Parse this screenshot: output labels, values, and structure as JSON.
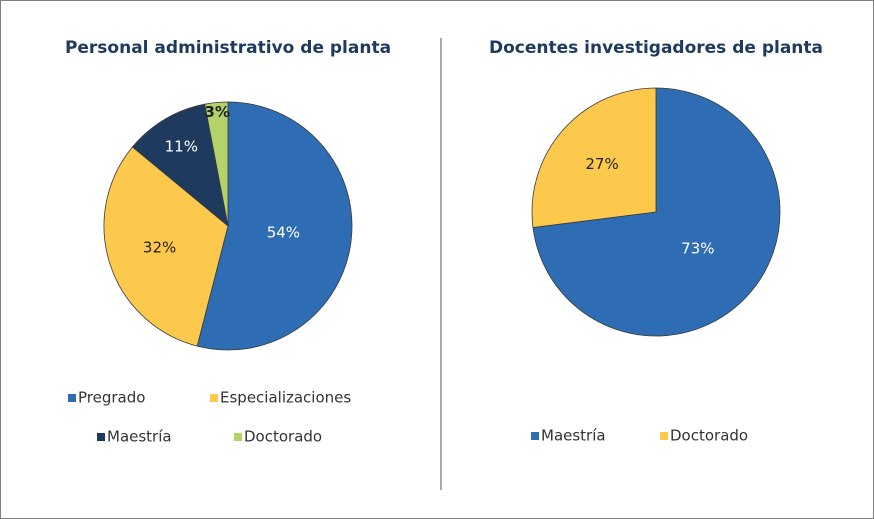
{
  "chart_data": [
    {
      "type": "pie",
      "title": "Personal administrativo de planta",
      "categories": [
        "Pregrado",
        "Especializaciones",
        "Maestría",
        "Doctorado"
      ],
      "values": [
        54,
        32,
        11,
        3
      ],
      "value_labels": [
        "54%",
        "32%",
        "11%",
        "3%"
      ],
      "colors": [
        "#2e6db4",
        "#fdc94d",
        "#1f3a5f",
        "#b3d36a"
      ]
    },
    {
      "type": "pie",
      "title": "Docentes investigadores de planta",
      "categories": [
        "Maestría",
        "Doctorado"
      ],
      "values": [
        73,
        27
      ],
      "value_labels": [
        "73%",
        "27%"
      ],
      "colors": [
        "#2e6db4",
        "#fdc94d"
      ]
    }
  ]
}
